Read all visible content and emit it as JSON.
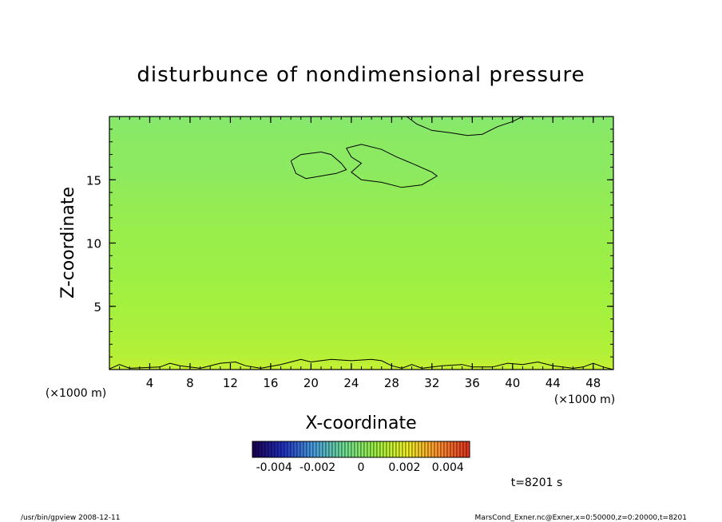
{
  "chart_data": {
    "type": "heatmap",
    "title": "disturbunce of nondimensional pressure",
    "xlabel": "X-coordinate",
    "ylabel": "Z-coordinate",
    "x_unit_left": "(×1000 m)",
    "x_unit_right": "(×1000 m)",
    "xlim": [
      0,
      50
    ],
    "ylim": [
      0,
      20
    ],
    "x_ticks": [
      4,
      8,
      12,
      16,
      20,
      24,
      28,
      32,
      36,
      40,
      44,
      48
    ],
    "x_tick_labels": [
      "4",
      "8",
      "12",
      "16",
      "20",
      "24",
      "28",
      "32",
      "36",
      "40",
      "44",
      "48"
    ],
    "y_ticks": [
      5,
      10,
      15
    ],
    "y_tick_labels": [
      "5",
      "10",
      "15"
    ],
    "field_levels": {
      "z": [
        0,
        1,
        3,
        5,
        8,
        11,
        14,
        16,
        18,
        20
      ],
      "value": [
        0.0014,
        0.0011,
        0.0009,
        0.0008,
        0.0006,
        0.0005,
        0.0003,
        0.0001,
        0.0001,
        -0.0001
      ]
    },
    "colorbar": {
      "min": -0.005,
      "max": 0.005,
      "ticks": [
        -0.004,
        -0.002,
        0,
        0.002,
        0.004
      ],
      "tick_labels": [
        "-0.004",
        "-0.002",
        "0",
        "0.002",
        "0.004"
      ],
      "colors": [
        "#1a0050",
        "#2030c0",
        "#4aa0e0",
        "#70e090",
        "#a0f040",
        "#f0f020",
        "#ff9030",
        "#e03020"
      ]
    },
    "contours": [
      {
        "points": [
          [
            0,
            0.05
          ],
          [
            1,
            0.4
          ],
          [
            2,
            0.1
          ],
          [
            5,
            0.2
          ],
          [
            6,
            0.5
          ],
          [
            7,
            0.3
          ],
          [
            9,
            0.1
          ],
          [
            11,
            0.5
          ],
          [
            12.5,
            0.6
          ],
          [
            13.5,
            0.3
          ],
          [
            15,
            0.1
          ],
          [
            17,
            0.4
          ],
          [
            18,
            0.6
          ],
          [
            19,
            0.8
          ],
          [
            20,
            0.6
          ],
          [
            22,
            0.8
          ],
          [
            24,
            0.7
          ],
          [
            26,
            0.8
          ],
          [
            27,
            0.7
          ],
          [
            28,
            0.3
          ],
          [
            29,
            0.1
          ],
          [
            30,
            0.4
          ],
          [
            31,
            0.1
          ],
          [
            33,
            0.3
          ],
          [
            35,
            0.4
          ],
          [
            36,
            0.2
          ],
          [
            38,
            0.2
          ],
          [
            39.5,
            0.5
          ],
          [
            41,
            0.4
          ],
          [
            42.5,
            0.6
          ],
          [
            44,
            0.3
          ],
          [
            46,
            0.1
          ],
          [
            47,
            0.2
          ],
          [
            48,
            0.5
          ],
          [
            49,
            0.2
          ],
          [
            50,
            0
          ]
        ]
      },
      {
        "points": [
          [
            18,
            16.5
          ],
          [
            19,
            17
          ],
          [
            21,
            17.2
          ],
          [
            22,
            17.0
          ],
          [
            23,
            16.3
          ],
          [
            23.5,
            15.8
          ],
          [
            22.5,
            15.5
          ],
          [
            21,
            15.3
          ],
          [
            19.5,
            15.1
          ],
          [
            18.5,
            15.5
          ],
          [
            18,
            16.5
          ]
        ]
      },
      {
        "points": [
          [
            23.5,
            17.5
          ],
          [
            25,
            17.8
          ],
          [
            27,
            17.4
          ],
          [
            28.5,
            16.8
          ],
          [
            30,
            16.3
          ],
          [
            32,
            15.6
          ],
          [
            32.5,
            15.3
          ],
          [
            31,
            14.6
          ],
          [
            29,
            14.4
          ],
          [
            27,
            14.8
          ],
          [
            25,
            15.0
          ],
          [
            24,
            15.6
          ],
          [
            25,
            16.3
          ],
          [
            24,
            16.8
          ],
          [
            23.5,
            17.5
          ]
        ]
      },
      {
        "points": [
          [
            29.5,
            20
          ],
          [
            30.5,
            19.4
          ],
          [
            32,
            18.9
          ],
          [
            34,
            18.7
          ],
          [
            35.5,
            18.5
          ],
          [
            37,
            18.6
          ],
          [
            38.5,
            19.2
          ],
          [
            40,
            19.6
          ],
          [
            41,
            20
          ]
        ]
      }
    ],
    "caption_time": "t=8201 s",
    "footer_left": "/usr/bin/gpview   2008-12-11",
    "footer_right": "MarsCond_Exner.nc@Exner,x=0:50000,z=0:20000,t=8201"
  }
}
